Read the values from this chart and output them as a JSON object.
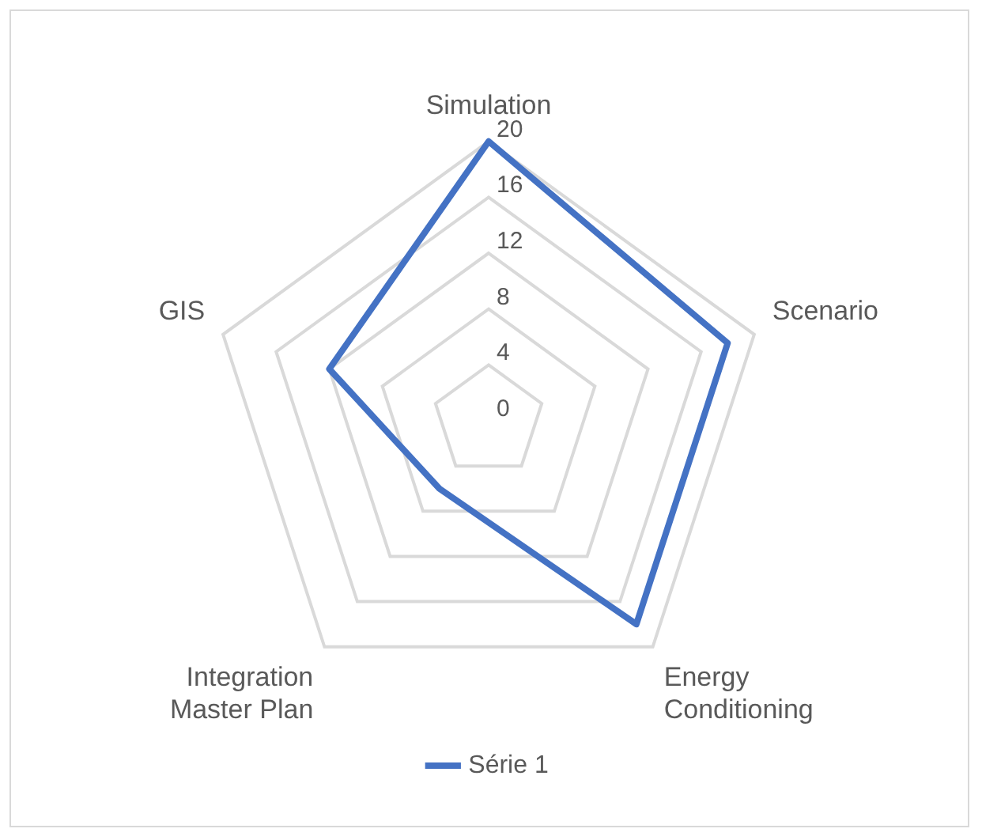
{
  "chart_data": {
    "type": "radar",
    "categories": [
      "Simulation",
      "Scenario",
      "Energy Conditioning",
      "Integration Master Plan",
      "GIS"
    ],
    "series": [
      {
        "name": "Série 1",
        "color": "#4472c4",
        "values": [
          20,
          18,
          18,
          6,
          12
        ]
      }
    ],
    "ylim": [
      0,
      20
    ],
    "yticks": [
      0,
      4,
      8,
      12,
      16,
      20
    ],
    "grid": true,
    "legend": "bottom",
    "marker": "none",
    "line_style": "solid"
  }
}
